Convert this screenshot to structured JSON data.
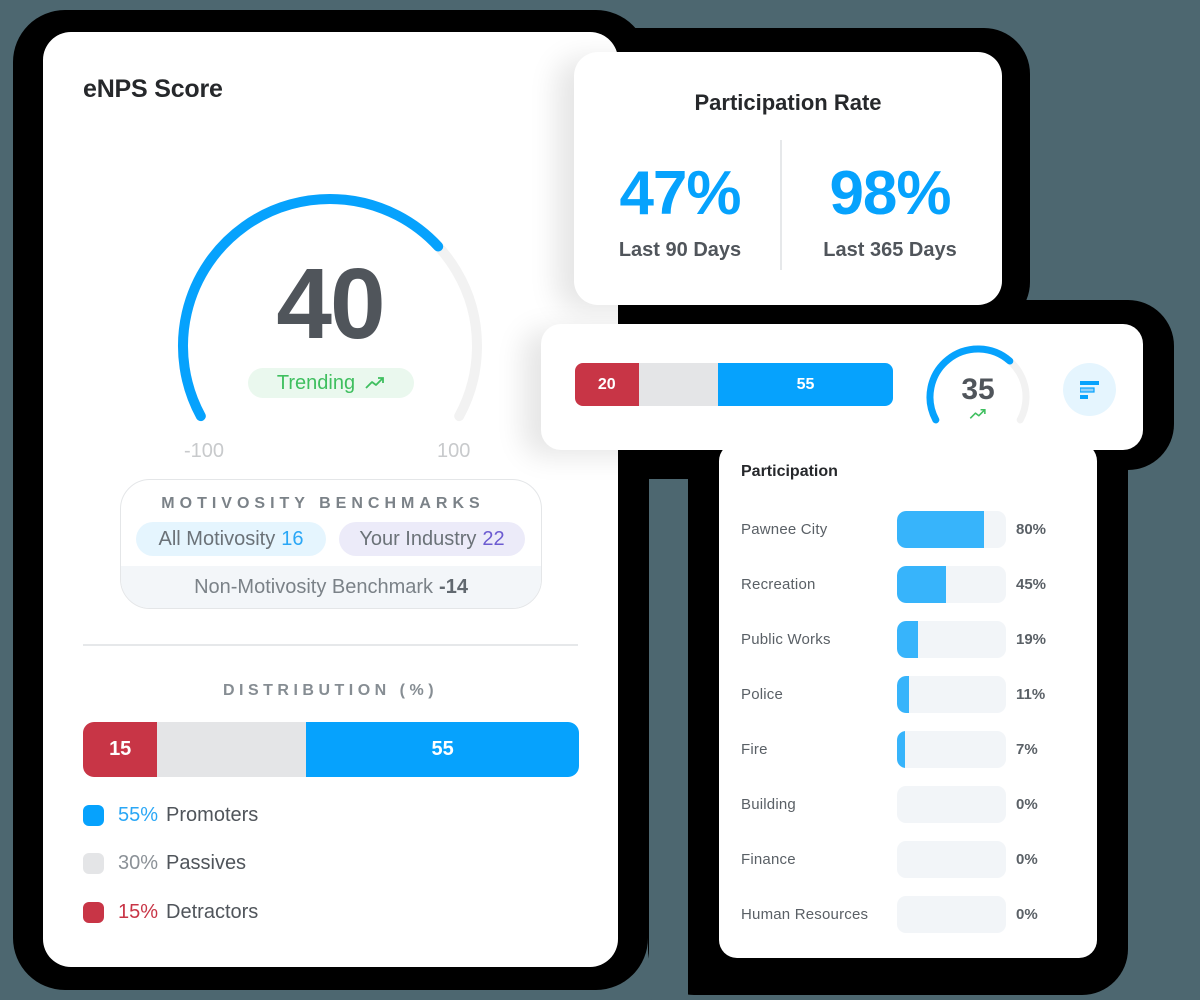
{
  "colors": {
    "background": "#4d6770",
    "promoters": "#06a2fd",
    "passives": "#e4e5e7",
    "detractors": "#c83546",
    "trending": "#3fbf5f",
    "gauge_track": "#f2f2f2",
    "participation_fill": "#37b4fb"
  },
  "enps": {
    "title": "eNPS Score",
    "score": "40",
    "score_value": 40,
    "trend_label": "Trending",
    "trend_icon": "trending-up-icon",
    "axis_min": "-100",
    "axis_max": "100",
    "benchmarks": {
      "title": "MOTIVOSITY BENCHMARKS",
      "all_label": "All Motivosity",
      "all_value": "16",
      "industry_label": "Your Industry",
      "industry_value": "22",
      "non_label": "Non-Motivosity Benchmark",
      "non_value": "-14"
    },
    "distribution": {
      "title": "DISTRIBUTION (%)",
      "detractors": 15,
      "passives": 30,
      "promoters": 55,
      "detractors_label": "15",
      "promoters_label": "55"
    },
    "legend": [
      {
        "pct": "55%",
        "label": "Promoters",
        "color": "#06a2fd",
        "pct_color": "#2aa7f6"
      },
      {
        "pct": "30%",
        "label": "Passives",
        "color": "#e4e5e7",
        "pct_color": "#8b9197"
      },
      {
        "pct": "15%",
        "label": "Detractors",
        "color": "#c83546",
        "pct_color": "#c83546"
      }
    ]
  },
  "participation_rate": {
    "title": "Participation Rate",
    "stats": [
      {
        "value": "47%",
        "label": "Last 90 Days"
      },
      {
        "value": "98%",
        "label": "Last 365 Days"
      }
    ]
  },
  "mini_summary": {
    "distribution": {
      "detractors": 20,
      "passives": 25,
      "promoters": 55,
      "detractors_label": "20",
      "promoters_label": "55"
    },
    "score": "35",
    "score_value": 35,
    "trend_icon": "trending-up-icon",
    "filter_icon": "sort-bars-icon"
  },
  "participation": {
    "title": "Participation",
    "rows": [
      {
        "name": "Pawnee City",
        "pct": "80%",
        "value": 80
      },
      {
        "name": "Recreation",
        "pct": "45%",
        "value": 45
      },
      {
        "name": "Public Works",
        "pct": "19%",
        "value": 19
      },
      {
        "name": "Police",
        "pct": "11%",
        "value": 11
      },
      {
        "name": "Fire",
        "pct": "7%",
        "value": 7
      },
      {
        "name": "Building",
        "pct": "0%",
        "value": 0
      },
      {
        "name": "Finance",
        "pct": "0%",
        "value": 0
      },
      {
        "name": "Human Resources",
        "pct": "0%",
        "value": 0
      }
    ]
  }
}
